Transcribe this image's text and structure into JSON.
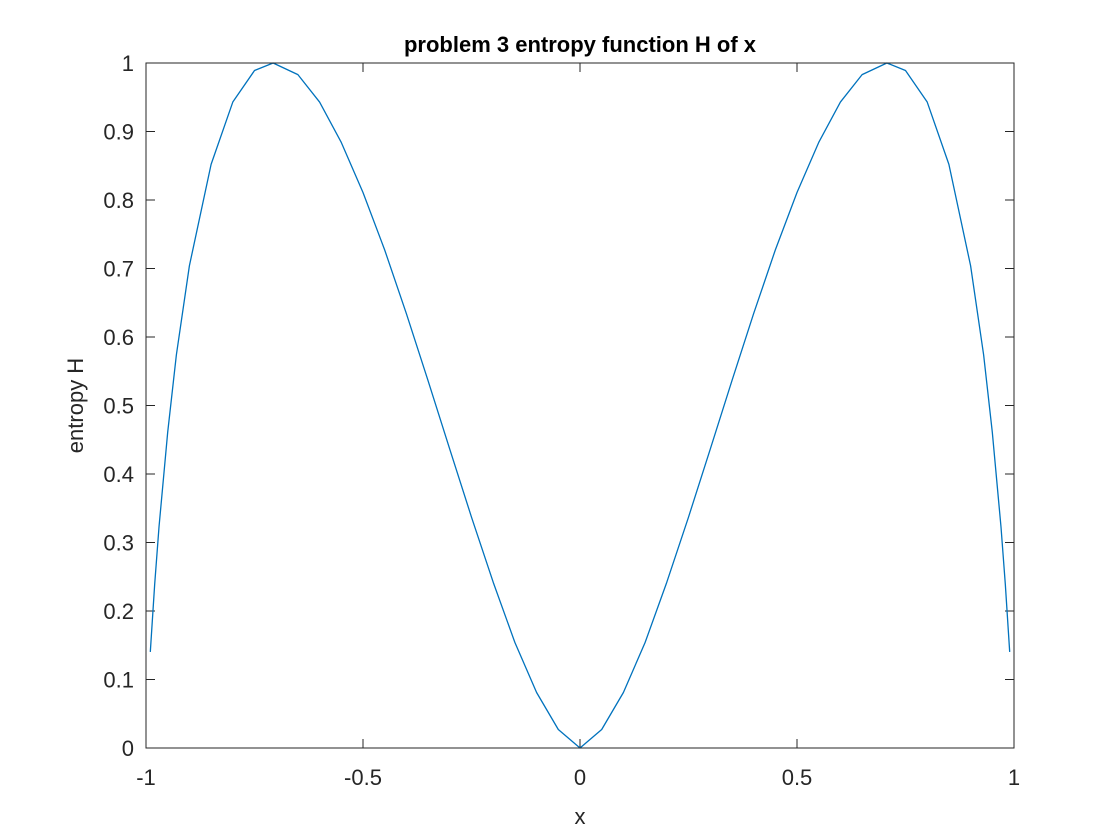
{
  "chart_data": {
    "type": "line",
    "title": "problem 3 entropy function H of x",
    "xlabel": "x",
    "ylabel": "entropy H",
    "xlim": [
      -1,
      1
    ],
    "ylim": [
      0,
      1
    ],
    "xticks": [
      "-1",
      "-0.5",
      "0",
      "0.5",
      "1"
    ],
    "yticks": [
      "0",
      "0.1",
      "0.2",
      "0.3",
      "0.4",
      "0.5",
      "0.6",
      "0.7",
      "0.8",
      "0.9",
      "1"
    ],
    "grid": false,
    "series": [
      {
        "color": "#0072BD",
        "x": [
          -0.99,
          -0.98,
          -0.97,
          -0.95,
          -0.93,
          -0.9,
          -0.85,
          -0.8,
          -0.75,
          -0.7071,
          -0.65,
          -0.6,
          -0.55,
          -0.5,
          -0.45,
          -0.4,
          -0.35,
          -0.3,
          -0.25,
          -0.2,
          -0.15,
          -0.1,
          -0.05,
          0,
          0.05,
          0.1,
          0.15,
          0.2,
          0.25,
          0.3,
          0.35,
          0.4,
          0.45,
          0.5,
          0.55,
          0.6,
          0.65,
          0.7071,
          0.75,
          0.8,
          0.85,
          0.9,
          0.93,
          0.95,
          0.97,
          0.98,
          0.99
        ],
        "y": [
          0.141,
          0.239,
          0.323,
          0.461,
          0.574,
          0.704,
          0.852,
          0.943,
          0.989,
          1.0,
          0.983,
          0.943,
          0.884,
          0.811,
          0.727,
          0.634,
          0.536,
          0.436,
          0.337,
          0.242,
          0.154,
          0.081,
          0.027,
          0,
          0.027,
          0.081,
          0.154,
          0.242,
          0.337,
          0.436,
          0.536,
          0.634,
          0.727,
          0.811,
          0.884,
          0.943,
          0.983,
          1.0,
          0.989,
          0.943,
          0.852,
          0.704,
          0.574,
          0.461,
          0.323,
          0.239,
          0.141
        ]
      }
    ]
  }
}
